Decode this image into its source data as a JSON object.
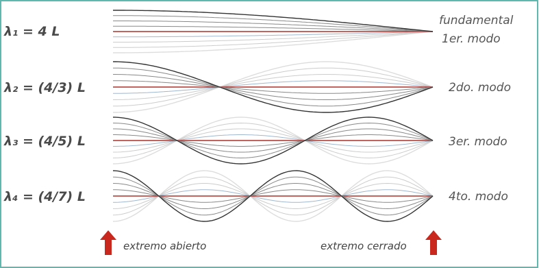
{
  "rows": [
    {
      "wavelength": "λ₁ = 4 L",
      "mode": [
        "fundamental",
        "1er. modo"
      ]
    },
    {
      "wavelength": "λ₂ = (4/3) L",
      "mode": [
        "2do. modo"
      ]
    },
    {
      "wavelength": "λ₃ = (4/5) L",
      "mode": [
        "3er. modo"
      ]
    },
    {
      "wavelength": "λ₄ = (4/7) L",
      "mode": [
        "4to. modo"
      ]
    }
  ],
  "ends": {
    "open": "extremo abierto",
    "closed": "extremo cerrado"
  }
}
